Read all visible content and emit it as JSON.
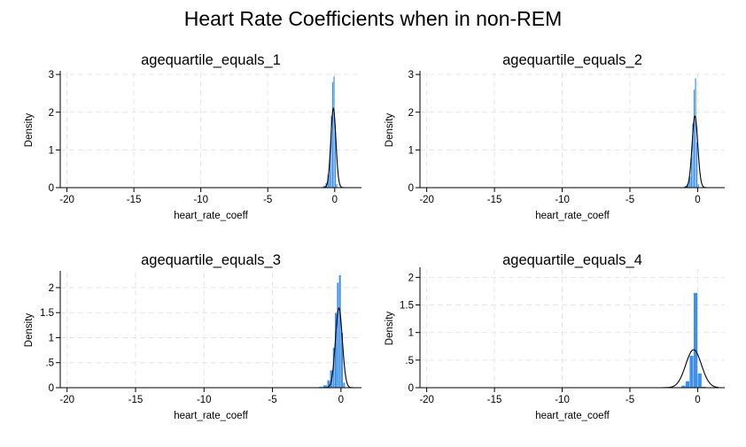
{
  "figure": {
    "title": "Heart Rate Coefficients when in non-REM"
  },
  "chart_data": [
    {
      "type": "histogram",
      "title": "agequartile_equals_1",
      "xlabel": "heart_rate_coeff",
      "ylabel": "Density",
      "xticks": [
        -20,
        -15,
        -10,
        -5,
        0
      ],
      "yticks": [
        0,
        1,
        2,
        3
      ],
      "ytick_labels": [
        "0",
        "1",
        "2",
        "3"
      ],
      "xlim": [
        -20.5,
        2.0
      ],
      "ylim": [
        0,
        3.05
      ],
      "bar_color": "#3d8ff0",
      "histogram": {
        "bin_edges": [
          -1.0,
          -0.85,
          -0.7,
          -0.55,
          -0.4,
          -0.3,
          -0.2,
          -0.1,
          0.0,
          0.1,
          0.2
        ],
        "density": [
          0.02,
          0.05,
          0.12,
          0.35,
          0.9,
          1.9,
          2.8,
          2.95,
          1.5,
          0.1
        ]
      },
      "normal_curve": {
        "mean": -0.1,
        "sd": 0.19
      }
    },
    {
      "type": "histogram",
      "title": "agequartile_equals_2",
      "xlabel": "heart_rate_coeff",
      "ylabel": "Density",
      "xticks": [
        -20,
        -15,
        -10,
        -5,
        0
      ],
      "yticks": [
        0,
        1,
        2,
        3
      ],
      "ytick_labels": [
        "0",
        "1",
        "2",
        "3"
      ],
      "xlim": [
        -20.5,
        2.0
      ],
      "ylim": [
        0,
        3.05
      ],
      "bar_color": "#3d8ff0",
      "histogram": {
        "bin_edges": [
          -1.1,
          -0.95,
          -0.8,
          -0.65,
          -0.5,
          -0.4,
          -0.3,
          -0.2,
          -0.1,
          0.0,
          0.1
        ],
        "density": [
          0.02,
          0.05,
          0.1,
          0.3,
          0.8,
          1.7,
          2.6,
          2.9,
          1.2,
          0.1
        ]
      },
      "normal_curve": {
        "mean": -0.2,
        "sd": 0.21
      }
    },
    {
      "type": "histogram",
      "title": "agequartile_equals_3",
      "xlabel": "heart_rate_coeff",
      "ylabel": "Density",
      "xticks": [
        -20,
        -15,
        -10,
        -5,
        0
      ],
      "yticks": [
        0,
        0.5,
        1,
        1.5,
        2
      ],
      "ytick_labels": [
        "0",
        ".5",
        "1",
        "1.5",
        "2"
      ],
      "xlim": [
        -20.5,
        1.5
      ],
      "ylim": [
        0,
        2.3
      ],
      "bar_color": "#3d8ff0",
      "histogram": {
        "bin_edges": [
          -1.6,
          -1.3,
          -1.0,
          -0.8,
          -0.6,
          -0.45,
          -0.3,
          -0.15,
          0.0,
          0.15,
          0.3
        ],
        "density": [
          0.02,
          0.05,
          0.15,
          0.35,
          0.8,
          1.5,
          2.1,
          2.25,
          1.1,
          0.1
        ]
      },
      "normal_curve": {
        "mean": -0.15,
        "sd": 0.25
      }
    },
    {
      "type": "histogram",
      "title": "agequartile_equals_4",
      "xlabel": "heart_rate_coeff",
      "ylabel": "Density",
      "xticks": [
        -20,
        -15,
        -10,
        -5,
        0
      ],
      "yticks": [
        0,
        0.5,
        1,
        1.5,
        2
      ],
      "ytick_labels": [
        "0",
        ".5",
        "1",
        "1.5",
        "2"
      ],
      "xlim": [
        -20.5,
        2.0
      ],
      "ylim": [
        0,
        2.15
      ],
      "bar_color": "#3d8ff0",
      "histogram": {
        "bin_edges": [
          -1.6,
          -1.2,
          -0.9,
          -0.6,
          -0.3,
          0.0,
          0.3,
          0.6
        ],
        "density": [
          0.01,
          0.04,
          0.12,
          0.58,
          1.72,
          0.26,
          0.02
        ]
      },
      "normal_curve": {
        "mean": -0.3,
        "sd": 0.58
      }
    }
  ]
}
